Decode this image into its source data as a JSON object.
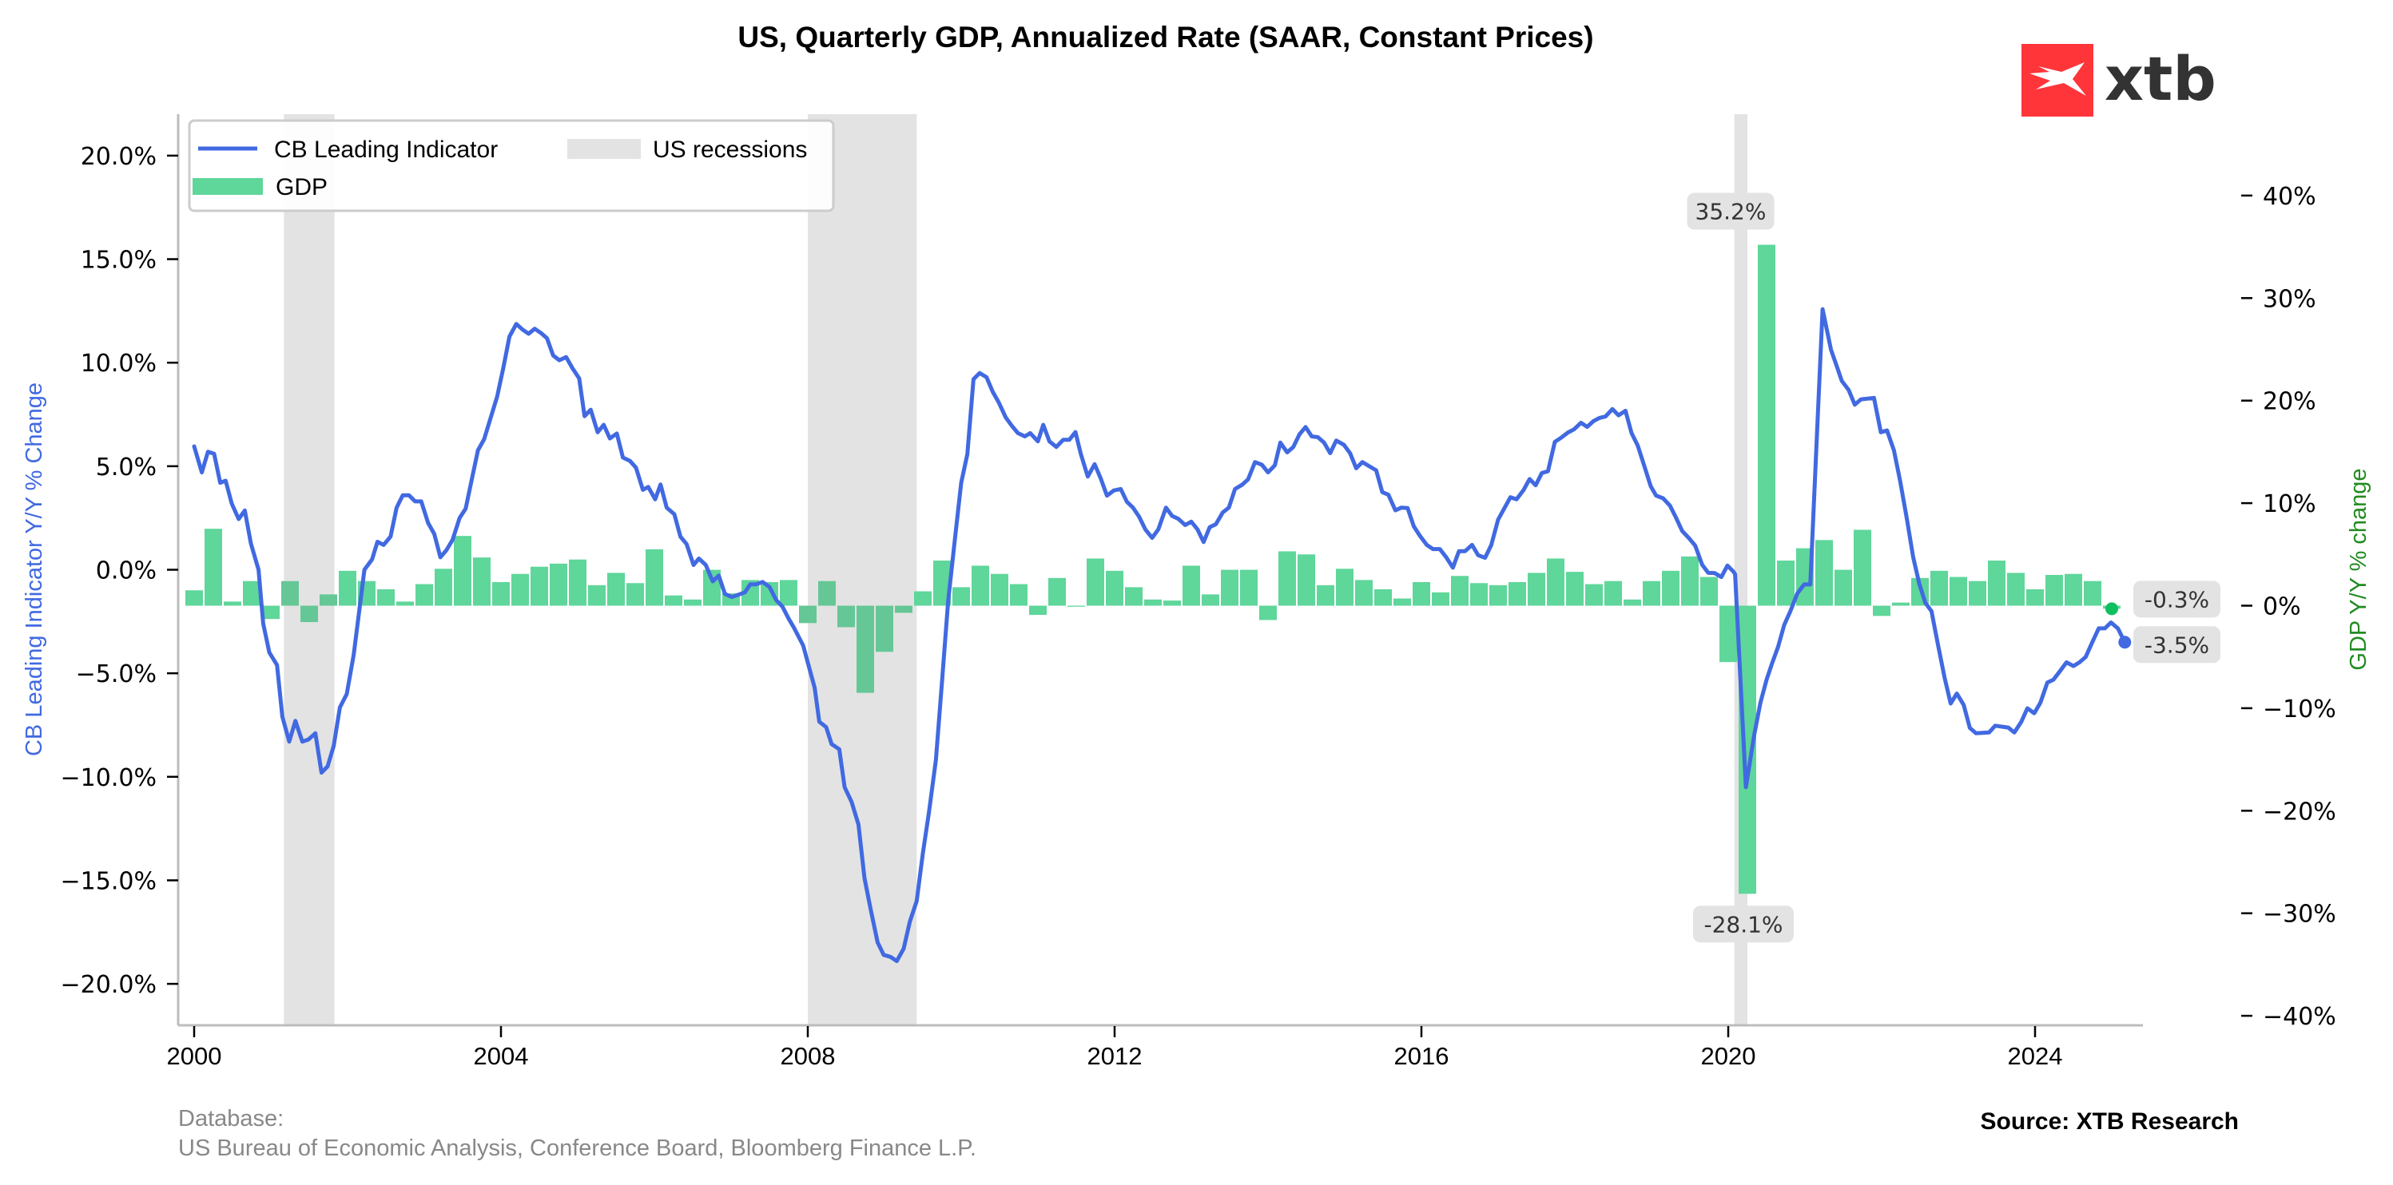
{
  "chart_data": {
    "type": "bar+line",
    "title": "US, Quarterly GDP, Annualized Rate (SAAR, Constant Prices)",
    "xlabel": "",
    "ylabel_left": "CB Leading Indicator Y/Y % Change",
    "ylabel_right": "GDP Y/Y % change",
    "x_ticks": [
      "2000",
      "2004",
      "2008",
      "2012",
      "2016",
      "2020",
      "2024"
    ],
    "x_tick_values": [
      2000,
      2004,
      2008,
      2012,
      2016,
      2020,
      2024
    ],
    "xlim": [
      1999.8,
      2025.4
    ],
    "ylim_left": [
      -22.0,
      22.0
    ],
    "ylim_right": [
      -40,
      40
    ],
    "y_ticks_left": [
      "20.0%",
      "15.0%",
      "10.0%",
      "5.0%",
      "0.0%",
      "−10.0%",
      "−15.0%",
      "−20.0%",
      "−5.0%"
    ],
    "y_tick_values_left": [
      20,
      15,
      10,
      5,
      0,
      -10,
      -15,
      -20,
      -5
    ],
    "y_ticks_right": [
      "40%",
      "30%",
      "20%",
      "10%",
      "0%",
      "−10%",
      "−20%",
      "−30%",
      "−40%"
    ],
    "y_tick_values_right": [
      40,
      30,
      20,
      10,
      0,
      -10,
      -20,
      -30,
      -40
    ],
    "grid": false,
    "legend": {
      "placement": "top-left",
      "entries": [
        {
          "label": "CB Leading Indicator",
          "kind": "line",
          "color": "#4169e1"
        },
        {
          "label": "US recessions",
          "kind": "area",
          "color": "#e3e3e3"
        },
        {
          "label": "GDP",
          "kind": "bar",
          "color": "#5fd69a"
        }
      ]
    },
    "recessions": [
      {
        "start": 2001.17,
        "end": 2001.83
      },
      {
        "start": 2008.0,
        "end": 2009.42
      },
      {
        "start": 2020.08,
        "end": 2020.25
      }
    ],
    "series": [
      {
        "name": "GDP",
        "axis": "right",
        "type": "bar",
        "color": "#5fd69a",
        "recession_color": "#66c796",
        "x": [
          2000.0,
          2000.25,
          2000.5,
          2000.75,
          2001.0,
          2001.25,
          2001.5,
          2001.75,
          2002.0,
          2002.25,
          2002.5,
          2002.75,
          2003.0,
          2003.25,
          2003.5,
          2003.75,
          2004.0,
          2004.25,
          2004.5,
          2004.75,
          2005.0,
          2005.25,
          2005.5,
          2005.75,
          2006.0,
          2006.25,
          2006.5,
          2006.75,
          2007.0,
          2007.25,
          2007.5,
          2007.75,
          2008.0,
          2008.25,
          2008.5,
          2008.75,
          2009.0,
          2009.25,
          2009.5,
          2009.75,
          2010.0,
          2010.25,
          2010.5,
          2010.75,
          2011.0,
          2011.25,
          2011.5,
          2011.75,
          2012.0,
          2012.25,
          2012.5,
          2012.75,
          2013.0,
          2013.25,
          2013.5,
          2013.75,
          2014.0,
          2014.25,
          2014.5,
          2014.75,
          2015.0,
          2015.25,
          2015.5,
          2015.75,
          2016.0,
          2016.25,
          2016.5,
          2016.75,
          2017.0,
          2017.25,
          2017.5,
          2017.75,
          2018.0,
          2018.25,
          2018.5,
          2018.75,
          2019.0,
          2019.25,
          2019.5,
          2019.75,
          2020.0,
          2020.25,
          2020.5,
          2020.75,
          2021.0,
          2021.25,
          2021.5,
          2021.75,
          2022.0,
          2022.25,
          2022.5,
          2022.75,
          2023.0,
          2023.25,
          2023.5,
          2023.75,
          2024.0,
          2024.25,
          2024.5,
          2024.75,
          2025.0
        ],
        "values": [
          1.5,
          7.5,
          0.4,
          2.4,
          -1.3,
          2.4,
          -1.6,
          1.1,
          3.4,
          2.4,
          1.6,
          0.4,
          2.1,
          3.6,
          6.8,
          4.7,
          2.3,
          3.1,
          3.8,
          4.1,
          4.5,
          2.0,
          3.2,
          2.2,
          5.5,
          1.0,
          0.6,
          3.5,
          1.2,
          2.5,
          2.3,
          2.5,
          -1.7,
          2.4,
          -2.1,
          -8.5,
          -4.5,
          -0.7,
          1.4,
          4.4,
          1.8,
          3.9,
          3.1,
          2.1,
          -0.9,
          2.7,
          -0.1,
          4.6,
          3.4,
          1.8,
          0.6,
          0.5,
          3.9,
          1.1,
          3.5,
          3.5,
          -1.4,
          5.3,
          5.0,
          2.0,
          3.6,
          2.5,
          1.6,
          0.7,
          2.3,
          1.3,
          2.9,
          2.2,
          2.0,
          2.3,
          3.2,
          4.6,
          3.3,
          2.1,
          2.4,
          0.6,
          2.4,
          3.4,
          4.8,
          2.8,
          -5.5,
          -28.1,
          35.2,
          4.4,
          5.6,
          6.4,
          3.5,
          7.4,
          -1.0,
          0.3,
          2.7,
          3.4,
          2.8,
          2.4,
          4.4,
          3.2,
          1.6,
          3.0,
          3.1,
          2.4,
          -0.3
        ]
      },
      {
        "name": "CB Leading Indicator",
        "axis": "left",
        "type": "line",
        "color": "#4169e1",
        "x": [
          2000.0,
          2000.1,
          2000.18,
          2000.26,
          2000.34,
          2000.41,
          2000.49,
          2000.58,
          2000.66,
          2000.74,
          2000.84,
          2000.9,
          2000.98,
          2001.08,
          2001.15,
          2001.24,
          2001.32,
          2001.41,
          2001.49,
          2001.58,
          2001.66,
          2001.74,
          2001.82,
          2001.9,
          2001.99,
          2002.08,
          2002.22,
          2002.32,
          2002.39,
          2002.47,
          2002.56,
          2002.64,
          2002.72,
          2002.8,
          2002.88,
          2002.96,
          2003.05,
          2003.13,
          2003.21,
          2003.29,
          2003.37,
          2003.46,
          2003.54,
          2003.63,
          2003.7,
          2003.78,
          2003.95,
          2004.03,
          2004.11,
          2004.2,
          2004.28,
          2004.36,
          2004.44,
          2004.52,
          2004.6,
          2004.68,
          2004.76,
          2004.85,
          2004.93,
          2005.02,
          2005.09,
          2005.17,
          2005.26,
          2005.34,
          2005.42,
          2005.51,
          2005.59,
          2005.68,
          2005.76,
          2005.85,
          2005.92,
          2006.01,
          2006.08,
          2006.16,
          2006.26,
          2006.34,
          2006.42,
          2006.51,
          2006.58,
          2006.67,
          2006.76,
          2006.84,
          2006.92,
          2007.01,
          2007.18,
          2007.25,
          2007.33,
          2007.41,
          2007.5,
          2007.59,
          2007.67,
          2007.75,
          2007.82,
          2007.94,
          2008.0,
          2008.09,
          2008.15,
          2008.24,
          2008.31,
          2008.41,
          2008.48,
          2008.57,
          2008.66,
          2008.74,
          2008.82,
          2008.91,
          2008.99,
          2009.08,
          2009.16,
          2009.25,
          2009.33,
          2009.42,
          2009.5,
          2009.58,
          2009.67,
          2009.75,
          2009.83,
          2009.92,
          2010.0,
          2010.08,
          2010.16,
          2010.24,
          2010.33,
          2010.41,
          2010.49,
          2010.58,
          2010.66,
          2010.74,
          2010.83,
          2010.9,
          2011.0,
          2011.07,
          2011.15,
          2011.24,
          2011.33,
          2011.41,
          2011.49,
          2011.56,
          2011.65,
          2011.74,
          2011.82,
          2011.9,
          2011.99,
          2012.08,
          2012.16,
          2012.24,
          2012.32,
          2012.4,
          2012.49,
          2012.57,
          2012.67,
          2012.75,
          2012.83,
          2012.92,
          2013.0,
          2013.08,
          2013.16,
          2013.24,
          2013.32,
          2013.41,
          2013.49,
          2013.57,
          2013.66,
          2013.74,
          2013.83,
          2013.92,
          2014.0,
          2014.09,
          2014.16,
          2014.25,
          2014.33,
          2014.41,
          2014.49,
          2014.57,
          2014.65,
          2014.73,
          2014.81,
          2014.89,
          2014.99,
          2015.07,
          2015.15,
          2015.23,
          2015.32,
          2015.41,
          2015.49,
          2015.57,
          2015.66,
          2015.74,
          2015.82,
          2015.9,
          2015.98,
          2016.07,
          2016.15,
          2016.24,
          2016.32,
          2016.41,
          2016.49,
          2016.57,
          2016.66,
          2016.74,
          2016.83,
          2016.91,
          2017.0,
          2017.08,
          2017.16,
          2017.24,
          2017.33,
          2017.41,
          2017.49,
          2017.57,
          2017.65,
          2017.74,
          2017.82,
          2017.91,
          2017.99,
          2018.08,
          2018.16,
          2018.24,
          2018.32,
          2018.4,
          2018.49,
          2018.57,
          2018.66,
          2018.74,
          2018.82,
          2018.9,
          2018.99,
          2019.06,
          2019.15,
          2019.24,
          2019.32,
          2019.4,
          2019.49,
          2019.57,
          2019.66,
          2019.74,
          2019.82,
          2019.91,
          2019.99,
          2020.07,
          2020.09,
          2020.23,
          2020.34,
          2020.42,
          2020.5,
          2020.57,
          2020.65,
          2020.73,
          2020.81,
          2020.9,
          2020.99,
          2021.07,
          2021.15,
          2021.23,
          2021.34,
          2021.42,
          2021.48,
          2021.57,
          2021.65,
          2021.73,
          2021.9,
          2021.99,
          2022.07,
          2022.16,
          2022.24,
          2022.33,
          2022.41,
          2022.49,
          2022.57,
          2022.65,
          2022.73,
          2022.82,
          2022.9,
          2022.98,
          2023.07,
          2023.15,
          2023.23,
          2023.4,
          2023.48,
          2023.65,
          2023.73,
          2023.82,
          2023.9,
          2023.99,
          2024.07,
          2024.16,
          2024.24,
          2024.33,
          2024.41,
          2024.5,
          2024.58,
          2024.66,
          2024.74,
          2024.83,
          2024.91,
          2024.99,
          2025.08,
          2025.17
        ],
        "values": [
          5.96,
          4.7,
          5.7,
          5.6,
          4.2,
          4.3,
          3.2,
          2.45,
          2.86,
          1.27,
          0.0,
          -2.6,
          -4.0,
          -4.6,
          -7.1,
          -8.3,
          -7.3,
          -8.3,
          -8.2,
          -7.9,
          -9.8,
          -9.5,
          -8.5,
          -6.65,
          -6.0,
          -4.1,
          0.0,
          0.5,
          1.35,
          1.2,
          1.6,
          3.0,
          3.6,
          3.6,
          3.3,
          3.3,
          2.26,
          1.73,
          0.6,
          0.95,
          1.45,
          2.5,
          2.95,
          4.55,
          5.77,
          6.3,
          8.36,
          9.74,
          11.26,
          11.87,
          11.6,
          11.4,
          11.64,
          11.44,
          11.18,
          10.35,
          10.12,
          10.27,
          9.74,
          9.24,
          7.42,
          7.73,
          6.64,
          7.0,
          6.34,
          6.58,
          5.42,
          5.26,
          4.93,
          3.86,
          4.0,
          3.4,
          4.12,
          3.0,
          2.68,
          1.6,
          1.24,
          0.23,
          0.54,
          0.23,
          -0.56,
          -0.28,
          -1.17,
          -1.32,
          -1.09,
          -0.7,
          -0.7,
          -0.59,
          -0.83,
          -1.47,
          -1.78,
          -2.36,
          -2.8,
          -3.66,
          -4.48,
          -5.7,
          -7.34,
          -7.6,
          -8.42,
          -8.67,
          -10.5,
          -11.2,
          -12.3,
          -14.9,
          -16.4,
          -18.0,
          -18.6,
          -18.7,
          -18.9,
          -18.3,
          -17.0,
          -16.0,
          -13.7,
          -11.7,
          -9.2,
          -5.4,
          -1.5,
          1.54,
          4.2,
          5.58,
          9.2,
          9.5,
          9.3,
          8.6,
          8.08,
          7.36,
          6.95,
          6.6,
          6.44,
          6.6,
          6.2,
          7.0,
          6.2,
          5.93,
          6.28,
          6.28,
          6.65,
          5.58,
          4.5,
          5.1,
          4.4,
          3.58,
          3.83,
          3.9,
          3.28,
          3.0,
          2.56,
          1.95,
          1.54,
          1.95,
          3.0,
          2.6,
          2.46,
          2.16,
          2.32,
          1.95,
          1.34,
          2.05,
          2.2,
          2.77,
          3.0,
          3.9,
          4.1,
          4.36,
          5.2,
          5.07,
          4.7,
          5.05,
          6.14,
          5.67,
          5.93,
          6.54,
          6.89,
          6.44,
          6.4,
          6.14,
          5.63,
          6.24,
          6.03,
          5.63,
          4.9,
          5.2,
          5.0,
          4.8,
          3.75,
          3.62,
          2.87,
          3.0,
          2.98,
          2.1,
          1.64,
          1.2,
          1.0,
          1.0,
          0.62,
          0.1,
          0.9,
          0.9,
          1.2,
          0.7,
          0.58,
          1.19,
          2.42,
          2.96,
          3.5,
          3.4,
          3.84,
          4.38,
          4.08,
          4.67,
          4.76,
          6.18,
          6.37,
          6.63,
          6.78,
          7.1,
          6.9,
          7.17,
          7.33,
          7.4,
          7.76,
          7.46,
          7.68,
          6.6,
          6.0,
          5.08,
          4.03,
          3.58,
          3.45,
          3.1,
          2.51,
          1.87,
          1.52,
          1.16,
          0.24,
          -0.15,
          -0.16,
          -0.35,
          0.2,
          -0.1,
          -0.22,
          -10.5,
          -7.96,
          -6.42,
          -5.31,
          -4.54,
          -3.72,
          -2.66,
          -2.0,
          -1.15,
          -0.71,
          -0.71,
          5.98,
          12.58,
          10.63,
          9.78,
          9.12,
          8.68,
          7.97,
          8.23,
          8.3,
          6.64,
          6.73,
          5.76,
          4.32,
          2.43,
          0.62,
          -0.66,
          -1.6,
          -2.0,
          -3.54,
          -5.2,
          -6.46,
          -5.98,
          -6.53,
          -7.64,
          -7.9,
          -7.86,
          -7.53,
          -7.62,
          -7.86,
          -7.35,
          -6.69,
          -6.93,
          -6.42,
          -5.45,
          -5.31,
          -4.87,
          -4.47,
          -4.65,
          -4.47,
          -4.21,
          -3.55,
          -2.83,
          -2.83,
          -2.55,
          -2.83,
          -3.5
        ]
      }
    ],
    "annotations": [
      {
        "text": "35.2%",
        "x": 2020.5,
        "value": 35.2,
        "axis": "right",
        "position": "above"
      },
      {
        "text": "-28.1%",
        "x": 2020.25,
        "value": -28.1,
        "axis": "right",
        "position": "below"
      },
      {
        "text": "-0.3%",
        "x": 2025.0,
        "value": -0.3,
        "axis": "right",
        "position": "right-end",
        "marker_color": "#0fbf5f"
      },
      {
        "text": "-3.5%",
        "x": 2025.17,
        "value": -3.5,
        "axis": "left",
        "position": "right-end",
        "marker_color": "#4169e1"
      }
    ]
  },
  "footer": {
    "database_label": "Database:",
    "database_sources": "US Bureau of Economic Analysis, Conference Board, Bloomberg Finance L.P.",
    "source": "Source: XTB Research"
  },
  "logo": {
    "text": "xtb",
    "brand_color": "#ff353a"
  }
}
